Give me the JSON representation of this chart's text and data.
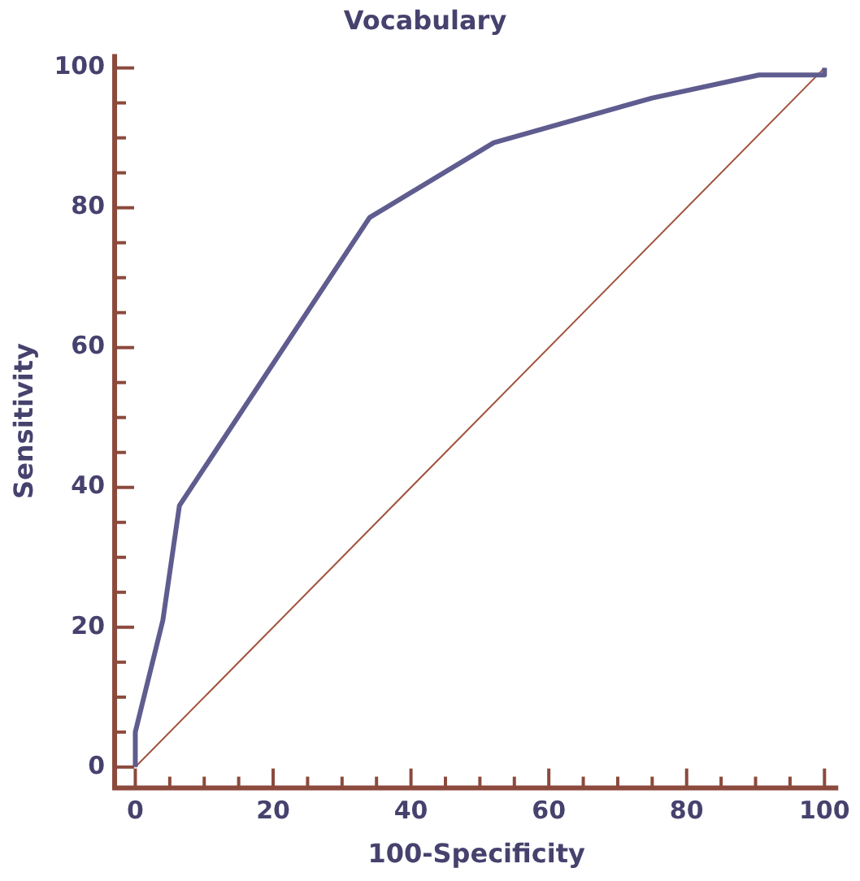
{
  "chart_data": {
    "type": "line",
    "title": "Vocabulary",
    "xlabel": "100-Specificity",
    "ylabel": "Sensitivity",
    "xlim": [
      -3,
      102
    ],
    "ylim": [
      -3,
      102
    ],
    "xticks": [
      0,
      {
        "value": 5,
        "label": null
      },
      {
        "value": 10,
        "label": null
      },
      {
        "value": 15,
        "label": null
      },
      20,
      {
        "value": 25,
        "label": null
      },
      {
        "value": 30,
        "label": null
      },
      {
        "value": 35,
        "label": null
      },
      40,
      {
        "value": 45,
        "label": null
      },
      {
        "value": 50,
        "label": null
      },
      {
        "value": 55,
        "label": null
      },
      60,
      {
        "value": 65,
        "label": null
      },
      {
        "value": 70,
        "label": null
      },
      {
        "value": 75,
        "label": null
      },
      80,
      {
        "value": 85,
        "label": null
      },
      {
        "value": 90,
        "label": null
      },
      {
        "value": 95,
        "label": null
      },
      100
    ],
    "yticks": [
      0,
      {
        "value": 5,
        "label": null
      },
      {
        "value": 10,
        "label": null
      },
      {
        "value": 15,
        "label": null
      },
      20,
      {
        "value": 25,
        "label": null
      },
      {
        "value": 30,
        "label": null
      },
      {
        "value": 35,
        "label": null
      },
      40,
      {
        "value": 45,
        "label": null
      },
      {
        "value": 50,
        "label": null
      },
      {
        "value": 55,
        "label": null
      },
      60,
      {
        "value": 65,
        "label": null
      },
      {
        "value": 70,
        "label": null
      },
      {
        "value": 75,
        "label": null
      },
      80,
      {
        "value": 85,
        "label": null
      },
      {
        "value": 90,
        "label": null
      },
      {
        "value": 95,
        "label": null
      },
      100
    ],
    "grid": false,
    "legend": false,
    "marker": "none",
    "series": [
      {
        "color": "#5f5c8f",
        "x": [
          0,
          0,
          4,
          6.4,
          34,
          52,
          75,
          90.5,
          100,
          100
        ],
        "values": [
          0,
          5,
          21,
          37.4,
          78.6,
          89.3,
          95.7,
          99,
          99,
          100
        ]
      },
      {
        "color": "#a0523c",
        "x": [
          0,
          100
        ],
        "values": [
          0,
          100
        ]
      }
    ]
  }
}
